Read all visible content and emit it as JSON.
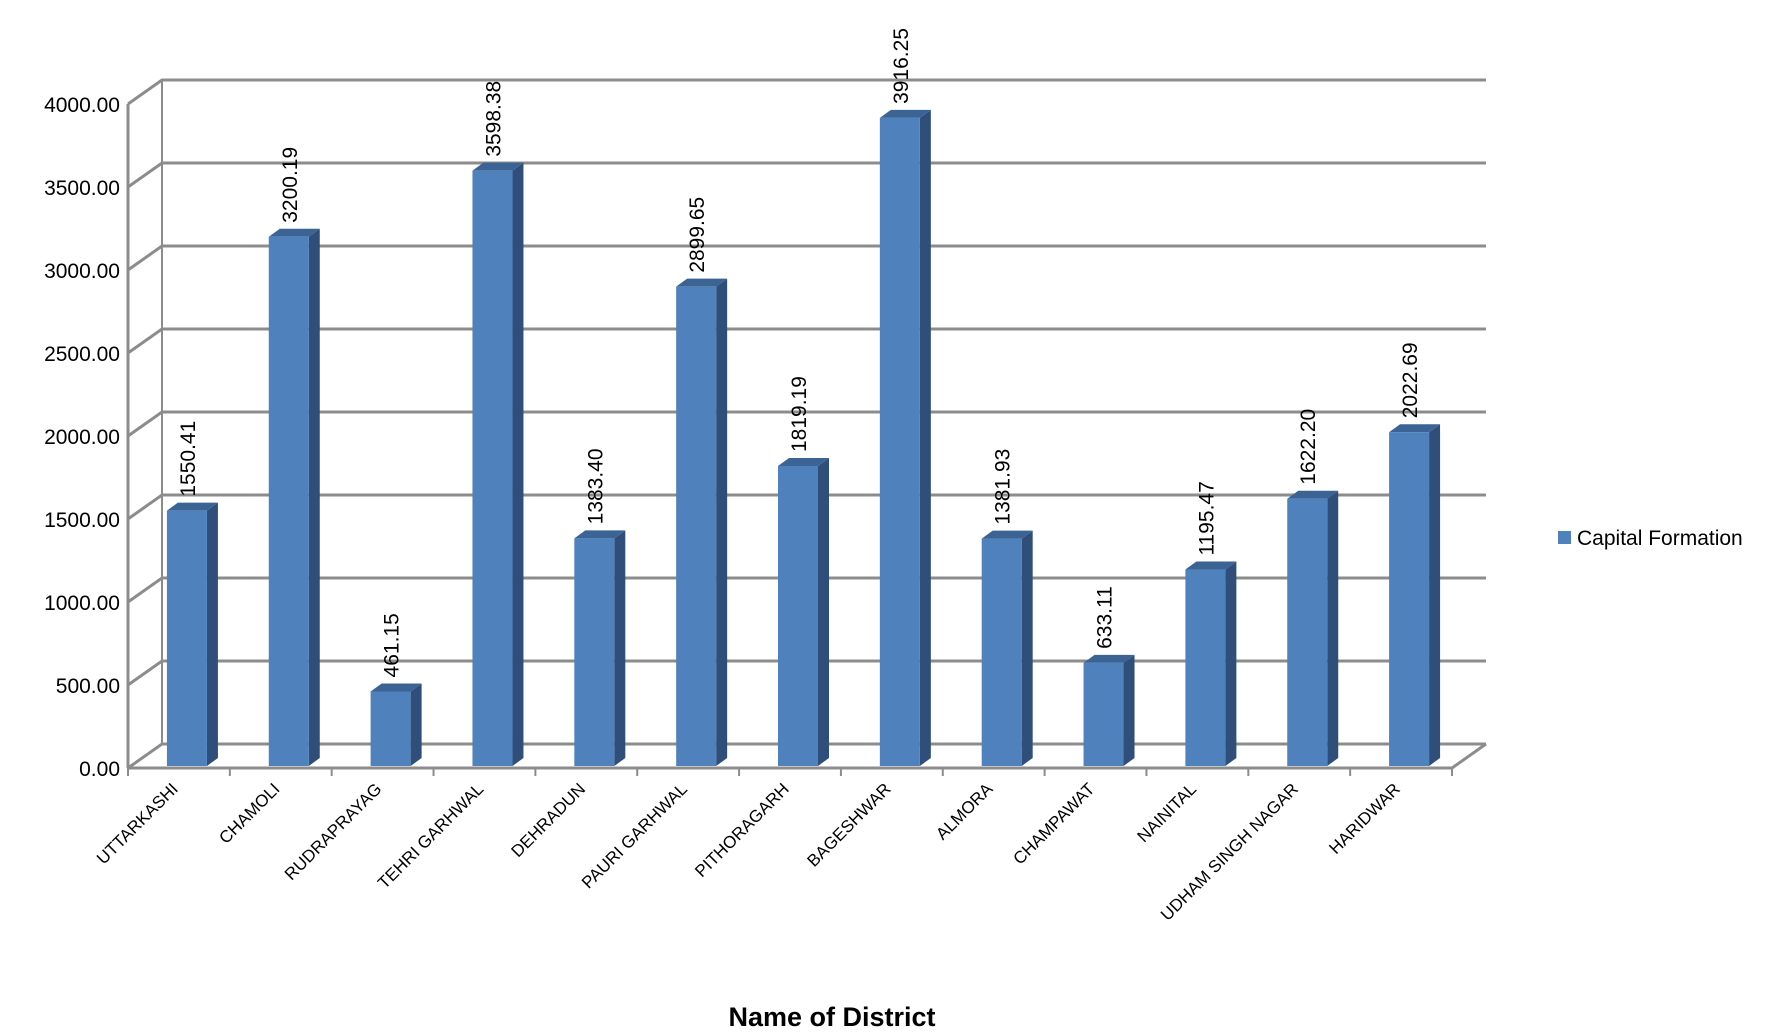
{
  "chart_data": {
    "type": "bar",
    "style": "3d-column",
    "categories": [
      "UTTARKASHI",
      "CHAMOLI",
      "RUDRAPRAYAG",
      "TEHRI GARHWAL",
      "DEHRADUN",
      "PAURI GARHWAL",
      "PITHORAGARH",
      "BAGESHWAR",
      "ALMORA",
      "CHAMPAWAT",
      "NAINITAL",
      "UDHAM SINGH NAGAR",
      "HARIDWAR"
    ],
    "series": [
      {
        "name": "Capital Formation",
        "values": [
          1550.41,
          3200.19,
          461.15,
          3598.38,
          1383.4,
          2899.65,
          1819.19,
          3916.25,
          1381.93,
          633.11,
          1195.47,
          1622.2,
          2022.69
        ],
        "value_labels": [
          "1550.41",
          "3200.19",
          "461.15",
          "3598.38",
          "1383.40",
          "2899.65",
          "1819.19",
          "3916.25",
          "1381.93",
          "633.11",
          "1195.47",
          "1622.20",
          "2022.69"
        ]
      }
    ],
    "y_ticks": [
      "0.00",
      "500.00",
      "1000.00",
      "1500.00",
      "2000.00",
      "2500.00",
      "3000.00",
      "3500.00",
      "4000.00"
    ],
    "ylim": [
      0,
      4000
    ],
    "xlabel": "Name of District",
    "ylabel": "",
    "grid": true,
    "legend": "right",
    "colors": {
      "bar_front": "#4f81bd",
      "bar_side": "#2f4f7a",
      "bar_top": "#3b6394",
      "grid": "#8c8c8c"
    }
  }
}
